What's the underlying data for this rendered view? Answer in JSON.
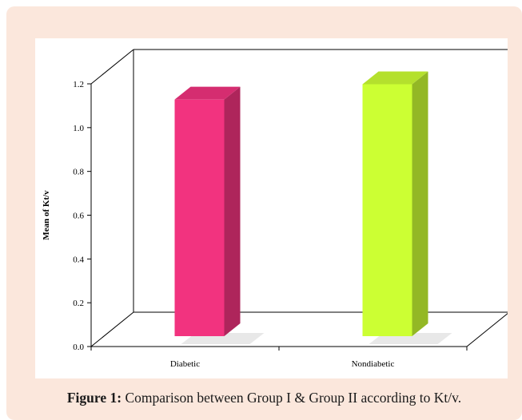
{
  "caption": {
    "label": "Figure 1:",
    "text": "Comparison between Group I & Group II according to Kt/v."
  },
  "chart_data": {
    "type": "bar",
    "categories": [
      "Diabetic",
      "Nondiabetic"
    ],
    "values": [
      1.11,
      1.18
    ],
    "ylabel": "Mean of Kt/v",
    "ylim": [
      0,
      1.2
    ],
    "yticks": [
      "0.0",
      "0.2",
      "0.4",
      "0.6",
      "0.8",
      "1.0",
      "1.2"
    ],
    "grid": false,
    "legend": "none",
    "style": "3d-column",
    "colors": {
      "Diabetic": "#f2337f",
      "Nondiabetic": "#ccff33"
    }
  }
}
